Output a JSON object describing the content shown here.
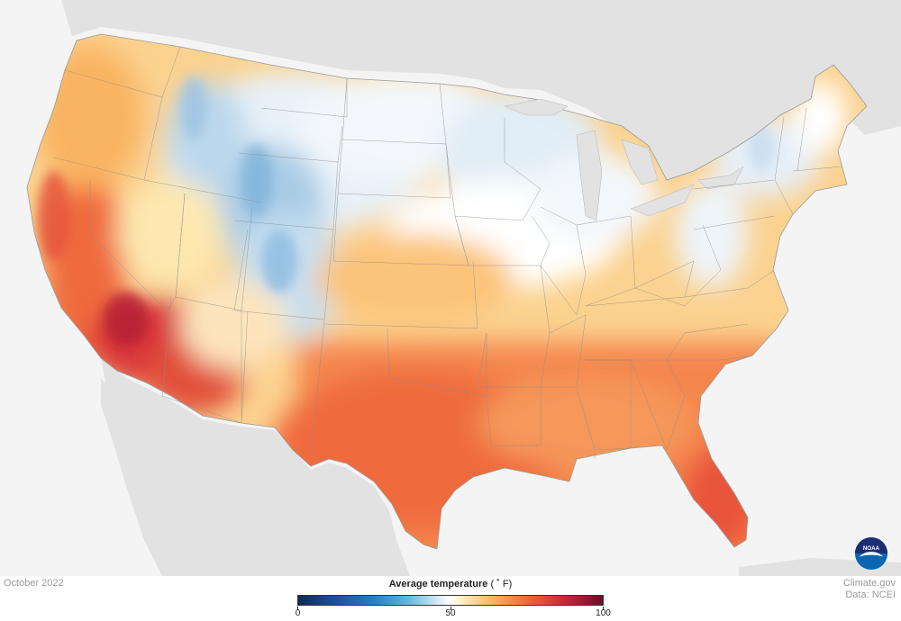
{
  "date": "October 2022",
  "legend": {
    "title_bold": "Average temperature",
    "title_unit": "( ˚ F)",
    "ticks": [
      {
        "label": "0",
        "value": 0
      },
      {
        "label": "50",
        "value": 50
      },
      {
        "label": "100",
        "value": 100
      }
    ],
    "range": [
      0,
      100
    ]
  },
  "credits": {
    "site": "Climate.gov",
    "data_source": "Data: NCEI"
  },
  "logo": {
    "text": "NOAA",
    "icon": "noaa-logo-icon"
  },
  "colors": {
    "ocean": "#f4f4f4",
    "land_other": "#e2e2e2",
    "cold": "#2a7fc0",
    "neutral": "#ffffff",
    "warm": "#f9b462",
    "hot": "#c92a39"
  }
}
